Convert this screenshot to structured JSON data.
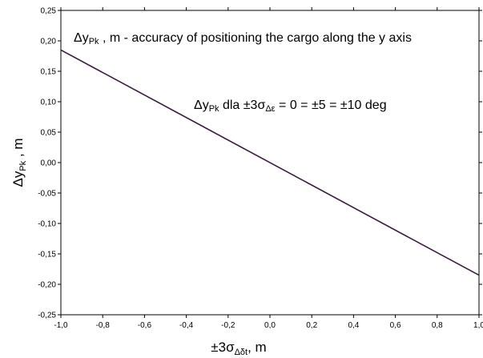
{
  "chart_data": {
    "type": "line",
    "title": "",
    "xlabel": {
      "prefix": "±3σ",
      "sub": "Δδt",
      "suffix": ", m"
    },
    "ylabel": {
      "prefix": "Δy",
      "sub": "Pk",
      "suffix": " , m"
    },
    "xlim": [
      -1.0,
      1.0
    ],
    "ylim": [
      -0.25,
      0.25
    ],
    "x_ticks": [
      "-1,0",
      "-0,8",
      "-0,6",
      "-0,4",
      "-0,2",
      "0,0",
      "0,2",
      "0,4",
      "0,6",
      "0,8",
      "1,0"
    ],
    "y_ticks": [
      "0,25",
      "0,20",
      "0,15",
      "0,10",
      "0,05",
      "0,00",
      "-0,05",
      "-0,10",
      "-0,15",
      "-0,20",
      "-0,25"
    ],
    "grid": false,
    "series": [
      {
        "x": [
          -1.0,
          1.0
        ],
        "y": [
          0.185,
          -0.185
        ],
        "color": "#3a1c3e"
      }
    ],
    "annotations": {
      "top": {
        "pre": "Δy",
        "sub": "Pk",
        "post": " , m - accuracy of positioning the cargo along the y axis"
      },
      "mid": {
        "pre": "Δy",
        "sub": "Pk",
        "mid": " dla ±3σ",
        "sub2": "Δε",
        "post": " = 0 = ±5 = ±10 deg"
      }
    }
  }
}
